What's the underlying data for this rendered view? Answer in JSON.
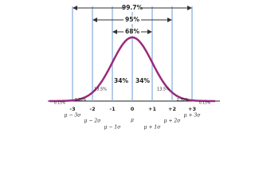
{
  "intervals": [
    "99.7%",
    "95%",
    "68%"
  ],
  "ticks": [
    "-3",
    "-2",
    "-1",
    "0",
    "+1",
    "+2",
    "+3"
  ],
  "sigma_labels": [
    "μ − 3σ",
    "μ − 2σ",
    "μ − 1σ",
    "μ",
    "μ + 1σ",
    "μ + 2σ",
    "μ + 3σ"
  ],
  "regions": [
    "0.15%",
    "2.35%",
    "13.5%",
    "34%",
    "34%",
    "13.5%",
    "2.35%",
    "0.15%"
  ]
}
